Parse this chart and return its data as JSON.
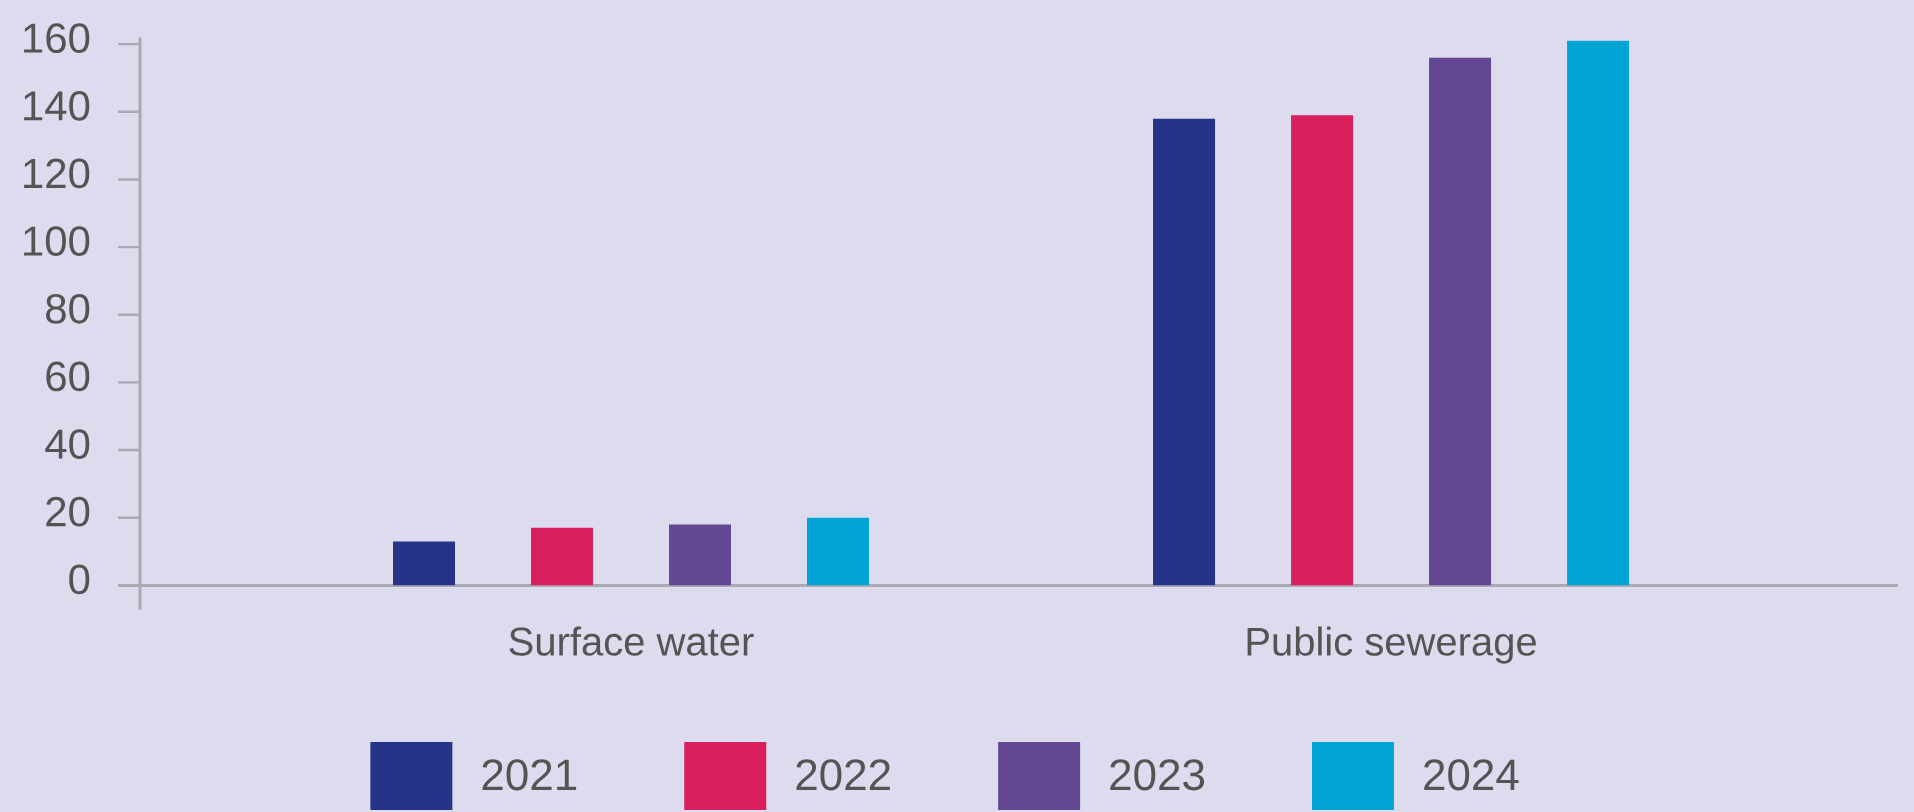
{
  "chart_data": {
    "type": "bar",
    "categories": [
      "Surface water",
      "Public sewerage"
    ],
    "series": [
      {
        "name": "2021",
        "color": "#253388",
        "values": [
          13,
          138
        ]
      },
      {
        "name": "2022",
        "color": "#d91f5e",
        "values": [
          17,
          139
        ]
      },
      {
        "name": "2023",
        "color": "#634694",
        "values": [
          18,
          156
        ]
      },
      {
        "name": "2024",
        "color": "#00a5d6",
        "values": [
          20,
          161
        ]
      }
    ],
    "ylim": [
      0,
      162
    ],
    "yticks": [
      0,
      20,
      40,
      60,
      80,
      100,
      120,
      140,
      160
    ],
    "legend": "bottom",
    "grid": false
  }
}
